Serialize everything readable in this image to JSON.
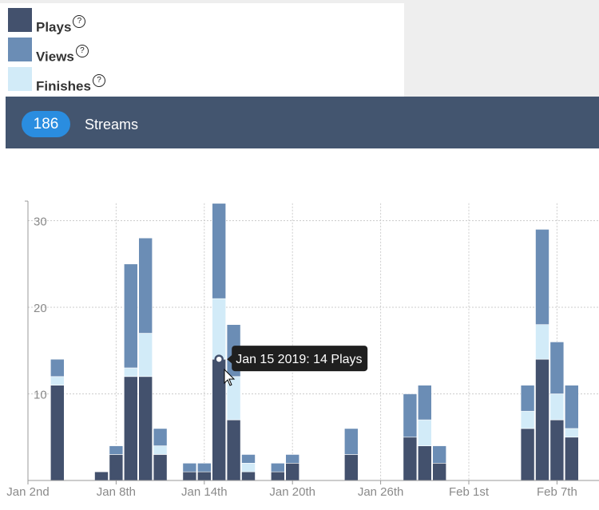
{
  "legend": [
    {
      "label": "Plays",
      "color": "#43516d",
      "help": "?"
    },
    {
      "label": "Views",
      "color": "#6b8db5",
      "help": "?"
    },
    {
      "label": "Finishes",
      "color": "#d2ebf8",
      "help": "?"
    }
  ],
  "banner": {
    "count": "186",
    "label": "Streams",
    "background": "#43556f",
    "badge_color": "#2a8de0"
  },
  "tooltip": {
    "text": "Jan 15 2019: 14 Plays"
  },
  "chart_data": {
    "type": "bar",
    "stacked": true,
    "x_axis": {
      "type": "date",
      "range": [
        "2019-01-02",
        "2019-02-11"
      ],
      "ticks": [
        {
          "date": "2019-01-02",
          "label": "Jan 2nd"
        },
        {
          "date": "2019-01-08",
          "label": "Jan 8th"
        },
        {
          "date": "2019-01-14",
          "label": "Jan 14th"
        },
        {
          "date": "2019-01-20",
          "label": "Jan 20th"
        },
        {
          "date": "2019-01-26",
          "label": "Jan 26th"
        },
        {
          "date": "2019-02-01",
          "label": "Feb 1st"
        },
        {
          "date": "2019-02-07",
          "label": "Feb 7th"
        }
      ]
    },
    "y_axis": {
      "range": [
        0,
        32
      ],
      "ticks": [
        10,
        20,
        30
      ]
    },
    "grid": true,
    "dates": [
      "2019-01-04",
      "2019-01-07",
      "2019-01-08",
      "2019-01-09",
      "2019-01-10",
      "2019-01-11",
      "2019-01-13",
      "2019-01-14",
      "2019-01-15",
      "2019-01-16",
      "2019-01-17",
      "2019-01-19",
      "2019-01-20",
      "2019-01-24",
      "2019-01-28",
      "2019-01-29",
      "2019-01-30",
      "2019-02-05",
      "2019-02-06",
      "2019-02-07",
      "2019-02-08"
    ],
    "series": [
      {
        "name": "Plays",
        "color": "#43516d",
        "values": [
          11,
          1,
          3,
          12,
          12,
          3,
          1,
          1,
          14,
          7,
          1,
          1,
          2,
          3,
          5,
          4,
          2,
          6,
          14,
          7,
          5
        ]
      },
      {
        "name": "Finishes",
        "color": "#d2ebf8",
        "values": [
          1,
          0,
          0,
          1,
          5,
          1,
          0,
          0,
          7,
          5,
          1,
          0,
          0,
          0,
          0,
          3,
          0,
          2,
          4,
          3,
          1
        ]
      },
      {
        "name": "Views",
        "color": "#6b8db5",
        "values": [
          2,
          0,
          1,
          12,
          11,
          2,
          1,
          1,
          11,
          6,
          1,
          1,
          1,
          3,
          5,
          4,
          2,
          3,
          11,
          6,
          5
        ]
      }
    ]
  }
}
